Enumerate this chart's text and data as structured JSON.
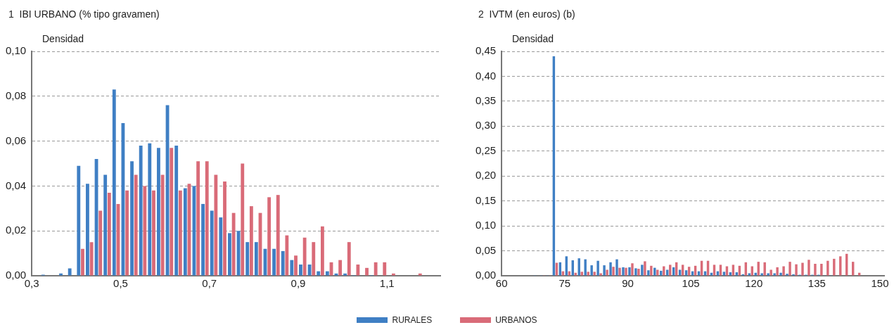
{
  "chart_data": [
    {
      "type": "histogram",
      "title": "1  IBI URBANO (% tipo gravamen)",
      "ylabel": "Densidad",
      "grid": "y",
      "xlim": [
        0.3,
        1.22
      ],
      "ylim": [
        0,
        0.1
      ],
      "xticks": [
        {
          "value": 0.3,
          "label": "0,3"
        },
        {
          "value": 0.5,
          "label": "0,5"
        },
        {
          "value": 0.7,
          "label": "0,7"
        },
        {
          "value": 0.9,
          "label": "0,9"
        },
        {
          "value": 1.1,
          "label": "1,1"
        }
      ],
      "yticks": [
        {
          "value": 0,
          "label": "0,00"
        },
        {
          "value": 0.02,
          "label": "0,02"
        },
        {
          "value": 0.04,
          "label": "0,04"
        },
        {
          "value": 0.06,
          "label": "0,06"
        },
        {
          "value": 0.08,
          "label": "0,08"
        },
        {
          "value": 0.1,
          "label": "0,10"
        }
      ],
      "bins": [
        0.3,
        0.32,
        0.34,
        0.36,
        0.38,
        0.4,
        0.42,
        0.44,
        0.46,
        0.48,
        0.5,
        0.52,
        0.54,
        0.56,
        0.58,
        0.6,
        0.62,
        0.64,
        0.66,
        0.68,
        0.7,
        0.72,
        0.74,
        0.76,
        0.78,
        0.8,
        0.82,
        0.84,
        0.86,
        0.88,
        0.9,
        0.92,
        0.94,
        0.96,
        0.98,
        1.0,
        1.02,
        1.04,
        1.06,
        1.08,
        1.1,
        1.12,
        1.14,
        1.16,
        1.18,
        1.2
      ],
      "series": [
        {
          "color": "#3f7fc4",
          "values": [
            0,
            0.0005,
            0,
            0.001,
            0.0033,
            0.049,
            0.041,
            0.052,
            0.045,
            0.083,
            0.068,
            0.051,
            0.058,
            0.059,
            0.057,
            0.076,
            0.058,
            0.039,
            0.04,
            0.032,
            0.029,
            0.026,
            0.019,
            0.02,
            0.015,
            0.015,
            0.012,
            0.012,
            0.011,
            0.007,
            0.005,
            0.005,
            0.002,
            0.002,
            0.001,
            0.001,
            0.0003,
            0,
            0.0003,
            0,
            0,
            0,
            0,
            0,
            0
          ]
        },
        {
          "color": "#d96b78",
          "values": [
            0,
            0,
            0,
            0,
            0,
            0.012,
            0.015,
            0.029,
            0.037,
            0.032,
            0.038,
            0.045,
            0.04,
            0.038,
            0.045,
            0.057,
            0.038,
            0.041,
            0.051,
            0.051,
            0.045,
            0.042,
            0.028,
            0.05,
            0.031,
            0.028,
            0.035,
            0.036,
            0.018,
            0.009,
            0.017,
            0.015,
            0.022,
            0.006,
            0.007,
            0.015,
            0.005,
            0.0035,
            0.006,
            0.006,
            0.001,
            0,
            0,
            0.001,
            0
          ]
        }
      ]
    },
    {
      "type": "histogram",
      "title": "2  IVTM (en euros) (b)",
      "ylabel": "Densidad",
      "grid": "y",
      "legend": "bottom",
      "xlim": [
        60,
        151
      ],
      "ylim": [
        0,
        0.45
      ],
      "xticks": [
        60,
        75,
        90,
        105,
        120,
        135,
        150
      ],
      "yticks": [
        {
          "value": 0,
          "label": "0,00"
        },
        {
          "value": 0.05,
          "label": "0,05"
        },
        {
          "value": 0.1,
          "label": "0,10"
        },
        {
          "value": 0.15,
          "label": "0,15"
        },
        {
          "value": 0.2,
          "label": "0,20"
        },
        {
          "value": 0.25,
          "label": "0,25"
        },
        {
          "value": 0.3,
          "label": "0,30"
        },
        {
          "value": 0.35,
          "label": "0,35"
        },
        {
          "value": 0.4,
          "label": "0,40"
        },
        {
          "value": 0.45,
          "label": "0,45"
        }
      ],
      "bins": [
        60,
        61.5,
        63,
        64.5,
        66,
        67.5,
        69,
        70.5,
        72,
        73.5,
        75,
        76.5,
        78,
        79.5,
        81,
        82.5,
        84,
        85.5,
        87,
        88.5,
        90,
        91.5,
        93,
        94.5,
        96,
        97.5,
        99,
        100.5,
        102,
        103.5,
        105,
        106.5,
        108,
        109.5,
        111,
        112.5,
        114,
        115.5,
        117,
        118.5,
        120,
        121.5,
        123,
        124.5,
        126,
        127.5,
        129,
        130.5,
        132,
        133.5,
        135,
        136.5,
        138,
        139.5,
        141,
        142.5,
        144,
        145.5,
        147,
        148.5,
        150
      ],
      "series": [
        {
          "name": "RURALES",
          "color": "#3f7fc4",
          "values": [
            0,
            0,
            0,
            0,
            0,
            0.001,
            0.001,
            0.001,
            0.44,
            0.027,
            0.039,
            0.031,
            0.035,
            0.033,
            0.021,
            0.03,
            0.021,
            0.027,
            0.033,
            0.017,
            0.017,
            0.015,
            0.022,
            0.011,
            0.016,
            0.01,
            0.012,
            0.017,
            0.012,
            0.011,
            0.009,
            0.009,
            0.009,
            0.006,
            0.009,
            0.008,
            0.007,
            0.007,
            0.003,
            0.005,
            0.006,
            0.005,
            0.005,
            0.005,
            0.006,
            0.004,
            0.003,
            0.002,
            0.002,
            0.002,
            0.002,
            0.001,
            0.001,
            0,
            0,
            0,
            0,
            0,
            0,
            0
          ]
        },
        {
          "name": "URBANOS",
          "color": "#d96b78",
          "values": [
            0,
            0,
            0,
            0,
            0,
            0,
            0.001,
            0.001,
            0.026,
            0.009,
            0.009,
            0.006,
            0.008,
            0.008,
            0.008,
            0.005,
            0.012,
            0.018,
            0.016,
            0.016,
            0.025,
            0.014,
            0.029,
            0.02,
            0.012,
            0.019,
            0.022,
            0.027,
            0.022,
            0.018,
            0.02,
            0.03,
            0.03,
            0.022,
            0.022,
            0.019,
            0.022,
            0.02,
            0.027,
            0.019,
            0.028,
            0.027,
            0.012,
            0.017,
            0.019,
            0.028,
            0.023,
            0.026,
            0.032,
            0.024,
            0.024,
            0.03,
            0.034,
            0.039,
            0.044,
            0.028,
            0.006,
            0,
            0,
            0
          ]
        }
      ]
    }
  ]
}
